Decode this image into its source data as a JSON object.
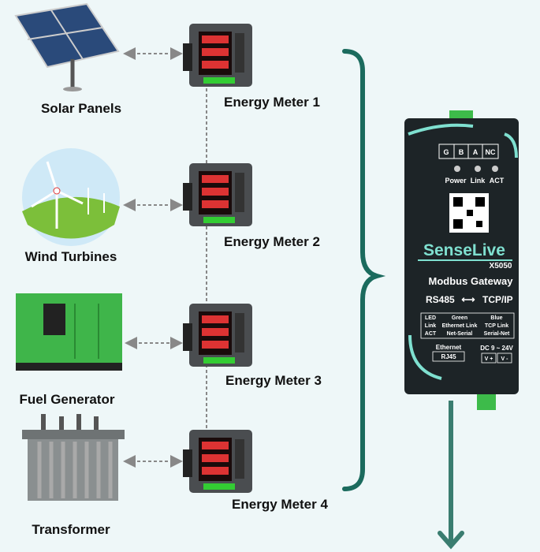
{
  "sources": [
    {
      "label": "Solar Panels"
    },
    {
      "label": "Wind Turbines"
    },
    {
      "label": "Fuel Generator"
    },
    {
      "label": "Transformer"
    }
  ],
  "meters": [
    {
      "label": "Energy Meter 1"
    },
    {
      "label": "Energy Meter 2"
    },
    {
      "label": "Energy Meter 3"
    },
    {
      "label": "Energy Meter 4"
    }
  ],
  "gateway": {
    "terminals": [
      "G",
      "B",
      "A",
      "NC"
    ],
    "leds": [
      "Power",
      "Link",
      "ACT"
    ],
    "brand": "SenseLive",
    "model": "X5050",
    "name": "Modbus Gateway",
    "left_protocol": "RS485",
    "right_protocol": "TCP/IP",
    "table": [
      [
        "LED",
        "Green",
        "Blue"
      ],
      [
        "Link",
        "Ethernet Link",
        "TCP Link"
      ],
      [
        "ACT",
        "Net-Serial",
        "Serial-Net"
      ]
    ],
    "port": [
      "Ethernet",
      "RJ45"
    ],
    "power": "DC 9 ~ 24V",
    "power_terminals": [
      "V +",
      "V -"
    ]
  }
}
